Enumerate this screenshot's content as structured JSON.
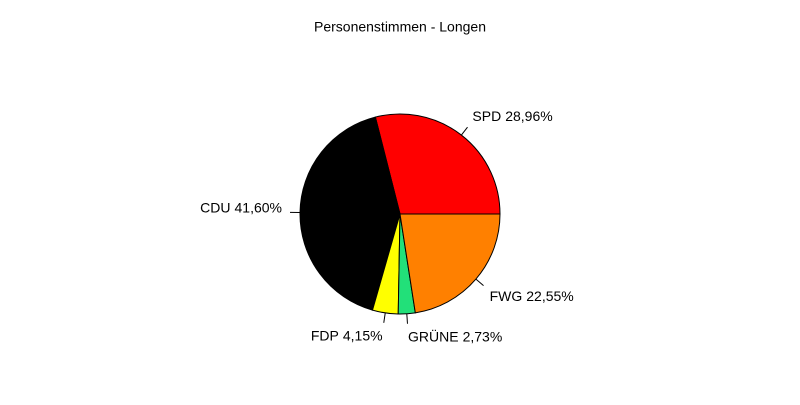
{
  "chart_data": {
    "type": "pie",
    "title": "Personenstimmen - Longen",
    "categories": [
      "SPD",
      "CDU",
      "FDP",
      "GRÜNE",
      "FWG"
    ],
    "values": [
      28.96,
      41.6,
      4.15,
      2.73,
      22.55
    ],
    "value_labels": [
      "28,96%",
      "41,60%",
      "4,15%",
      "2,73%",
      "22,55%"
    ],
    "colors": [
      "#ff0000",
      "#000000",
      "#ffff00",
      "#22e079",
      "#ff8000"
    ]
  }
}
